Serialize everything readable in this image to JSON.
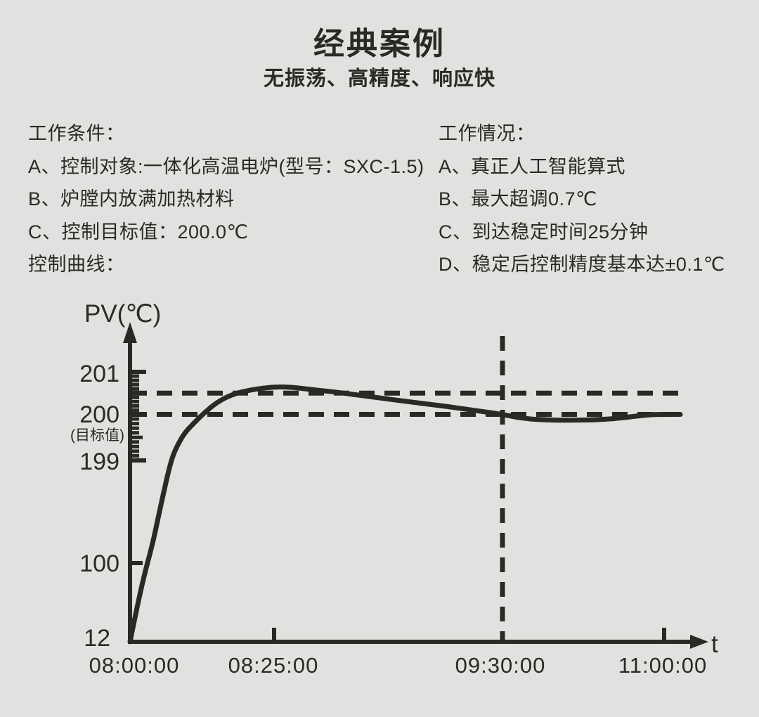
{
  "colors": {
    "background": "#e2e1df",
    "ink": "#2b2925"
  },
  "header": {
    "title": "经典案例",
    "subtitle": "无振荡、高精度、响应快"
  },
  "conditions": {
    "heading": "工作条件：",
    "items": [
      "A、控制对象:一体化高温电炉(型号：SXC-1.5)",
      "B、炉膛内放满加热材料",
      "C、控制目标值：200.0℃"
    ],
    "footer": "控制曲线："
  },
  "performance": {
    "heading": "工作情况：",
    "items": [
      "A、真正人工智能算式",
      "B、最大超调0.7℃",
      "C、到达稳定时间25分钟",
      "D、稳定后控制精度基本达±0.1℃"
    ]
  },
  "chart_data": {
    "type": "line",
    "title": "控制曲线",
    "ylabel": "PV(℃)",
    "xlabel": "t",
    "x_tick_labels": [
      "08:00:00",
      "08:25:00",
      "09:30:00",
      "11:00:00"
    ],
    "x_tick_minutes": [
      0,
      25,
      90,
      180
    ],
    "x_tick_marks_min": [
      25,
      180
    ],
    "y_tick_labels": [
      "201",
      "200",
      "199",
      "100",
      "12"
    ],
    "y_tick_values": [
      201,
      200,
      199,
      100,
      12
    ],
    "target_value": 200.0,
    "target_note": "(目标值)",
    "overshoot_peak": 200.7,
    "ruler_range": [
      199,
      201
    ],
    "ruler_step": 0.1,
    "reference_lines": {
      "horizontal_pv": [
        200.5,
        200.0
      ],
      "vertical_t_min": 90
    },
    "series": [
      {
        "name": "PV",
        "points": [
          [
            0,
            12
          ],
          [
            1.2,
            50
          ],
          [
            2.4,
            85
          ],
          [
            4,
            120
          ],
          [
            5.5,
            160
          ],
          [
            7.1,
            199
          ],
          [
            8.3,
            199.35
          ],
          [
            9.5,
            199.6
          ],
          [
            11,
            199.8
          ],
          [
            12.6,
            200.0
          ],
          [
            15,
            200.28
          ],
          [
            17.7,
            200.47
          ],
          [
            21,
            200.58
          ],
          [
            25,
            200.65
          ],
          [
            30,
            200.64
          ],
          [
            36,
            200.58
          ],
          [
            43,
            200.52
          ],
          [
            52,
            200.42
          ],
          [
            63,
            200.3
          ],
          [
            72,
            200.21
          ],
          [
            79,
            200.13
          ],
          [
            85,
            200.06
          ],
          [
            90,
            200.0
          ],
          [
            100,
            199.92
          ],
          [
            112,
            199.88
          ],
          [
            130,
            199.87
          ],
          [
            147,
            199.89
          ],
          [
            158,
            199.93
          ],
          [
            168,
            199.98
          ],
          [
            175,
            200.0
          ],
          [
            189,
            200.0
          ]
        ]
      }
    ]
  }
}
